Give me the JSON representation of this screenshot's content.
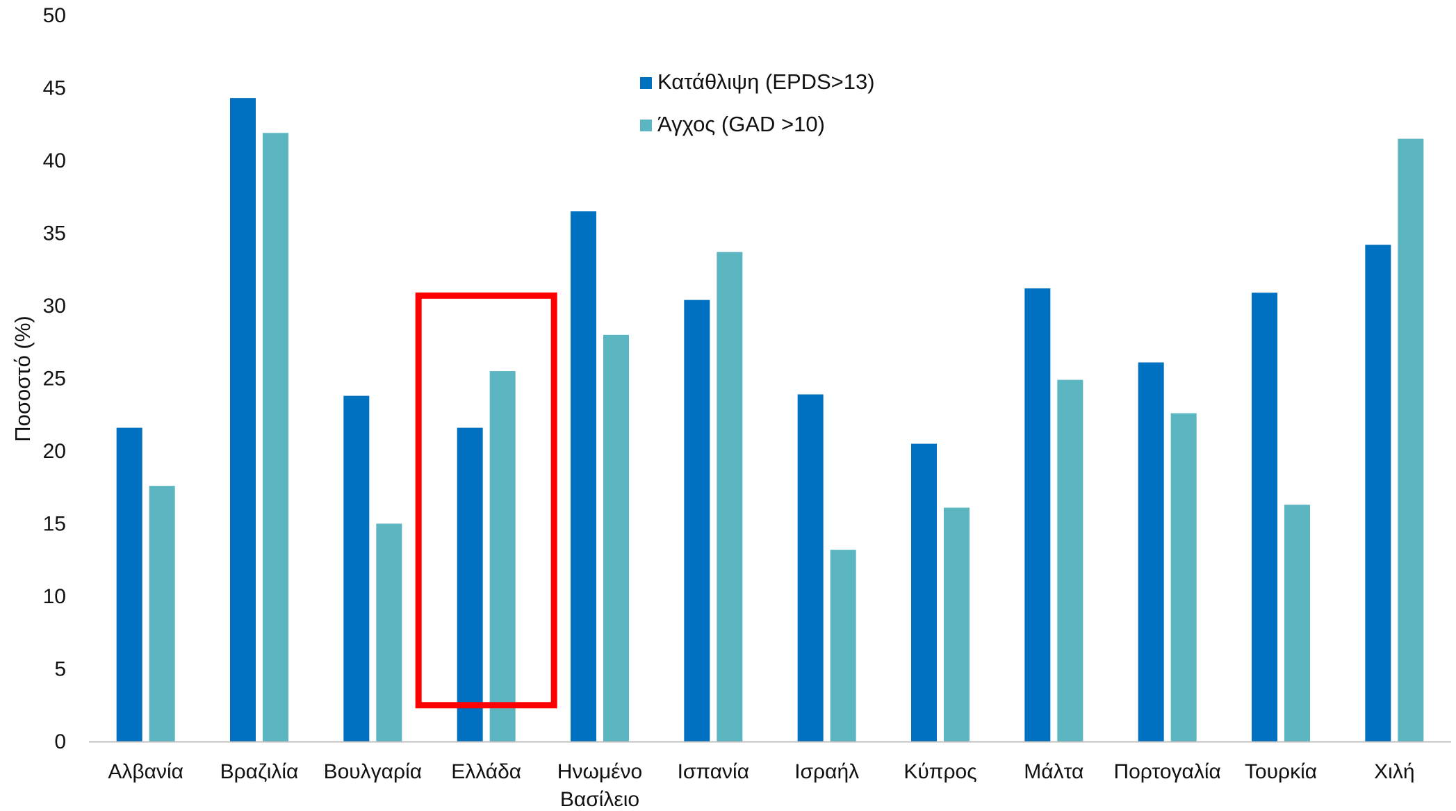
{
  "chart_data": {
    "type": "bar",
    "title": "",
    "xlabel": "",
    "ylabel": "Ποσοστό (%)",
    "ylim": [
      0,
      50
    ],
    "yticks": [
      "0",
      "5",
      "10",
      "15",
      "20",
      "25",
      "30",
      "35",
      "40",
      "45",
      "50"
    ],
    "grid": false,
    "legend_position": "top-center",
    "categories": [
      [
        "Αλβανία"
      ],
      [
        "Βραζιλία"
      ],
      [
        "Βουλγαρία"
      ],
      [
        "Ελλάδα"
      ],
      [
        "Ηνωμένο",
        "Βασίλειο"
      ],
      [
        "Ισπανία"
      ],
      [
        "Ισραήλ"
      ],
      [
        "Κύπρος"
      ],
      [
        "Μάλτα"
      ],
      [
        "Πορτογαλία"
      ],
      [
        "Τουρκία"
      ],
      [
        "Χιλή"
      ]
    ],
    "series": [
      {
        "name": "Κατάθλιψη (EPDS>13)",
        "color": "#0070C0",
        "values": [
          21.6,
          44.3,
          23.8,
          21.6,
          36.5,
          30.4,
          23.9,
          20.5,
          31.2,
          26.1,
          30.9,
          34.2
        ]
      },
      {
        "name": "Άγχος (GAD >10)",
        "color": "#5BB6C1",
        "values": [
          17.6,
          41.9,
          15.0,
          25.5,
          28.0,
          33.7,
          13.2,
          16.1,
          24.9,
          22.6,
          16.3,
          41.5
        ]
      }
    ],
    "highlight": {
      "category": "Ελλάδα",
      "color": "#FF0000",
      "y_range": [
        2.5,
        30.7
      ]
    }
  }
}
